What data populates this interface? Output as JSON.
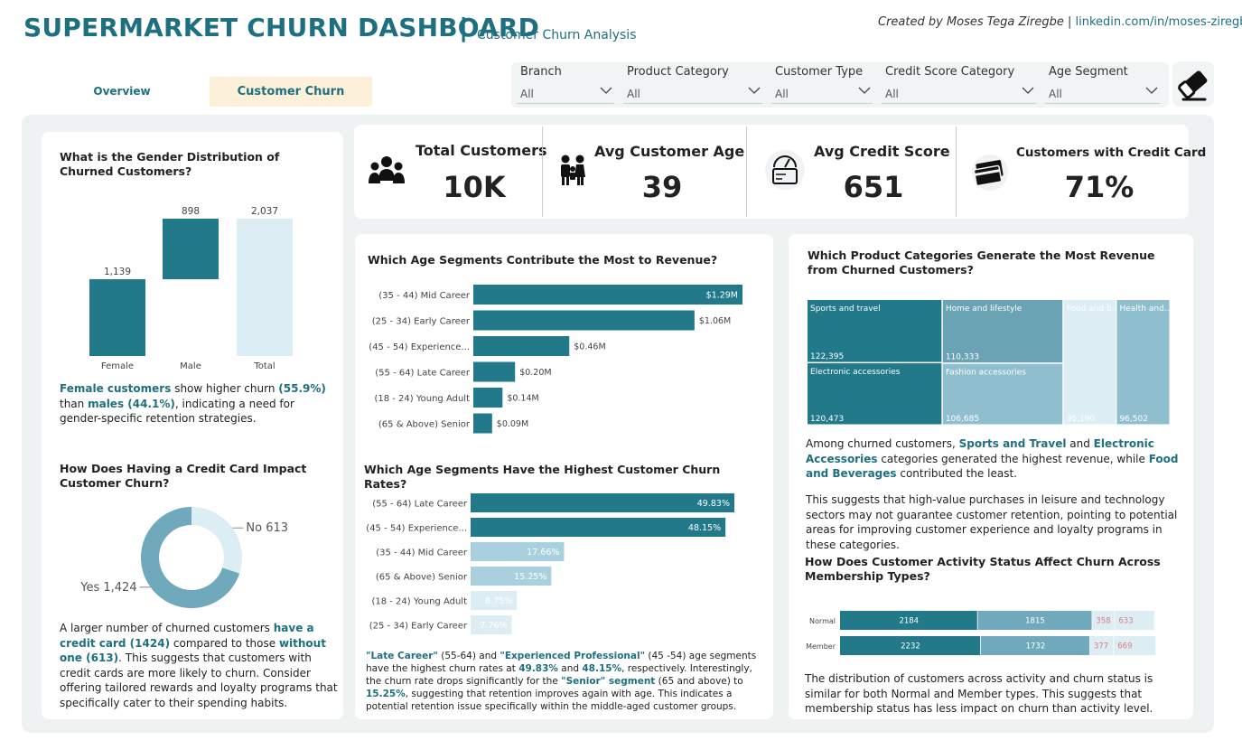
{
  "header": {
    "title": "SUPERMARKET CHURN DASHBOARD",
    "separator": "|",
    "subtitle": "Customer Churn Analysis",
    "credit_prefix": "Created by Moses Tega Ziregbe",
    "credit_sep": "|",
    "credit_link": "linkedin.com/in/moses-ziregbe"
  },
  "nav": {
    "overview": "Overview",
    "active": "Customer Churn Analysis"
  },
  "filters": [
    {
      "label": "Branch",
      "value": "All"
    },
    {
      "label": "Product Category",
      "value": "All"
    },
    {
      "label": "Customer Type",
      "value": "All"
    },
    {
      "label": "Credit Score Category",
      "value": "All"
    },
    {
      "label": "Age Segment",
      "value": "All"
    }
  ],
  "kpis": [
    {
      "label": "Total Customers",
      "value": "10K",
      "icon": "people-icon"
    },
    {
      "label": "Avg Customer Age",
      "value": "39",
      "icon": "family-icon"
    },
    {
      "label": "Avg Credit Score",
      "value": "651",
      "icon": "credit-gauge-icon"
    },
    {
      "label": "Customers with Credit Card",
      "value": "71%",
      "icon": "credit-card-icon"
    }
  ],
  "gender": {
    "question": "What is the Gender Distribution of Churned Customers?",
    "text_b1": "Female customers",
    "text_1": " show higher churn ",
    "text_b2": "(55.9%)",
    "text_2": " than ",
    "text_b3": "males (44.1%)",
    "text_3": ", indicating a need for gender-specific retention strategies."
  },
  "credit": {
    "question": "How Does Having a Credit Card Impact Customer Churn?",
    "text_1": "A larger number of churned customers ",
    "text_b1": "have a credit card (1424)",
    "text_2": " compared to those ",
    "text_b2": "without one (613)",
    "text_3": ". This suggests that customers with credit cards are more likely to churn. Consider offering tailored rewards and loyalty programs that specifically cater to their spending habits."
  },
  "revenue_age": {
    "question": "Which Age Segments Contribute the Most to Revenue?"
  },
  "churn_age": {
    "question": "Which Age Segments Have the Highest Customer Churn Rates?",
    "text_b1": "\"Late Career\"",
    "text_1": " (55-64) and ",
    "text_b2": "\"Experienced Professional\"",
    "text_2": " (45 -54) age segments have the highest churn rates at ",
    "text_b3": "49.83%",
    "text_3": " and ",
    "text_b4": "48.15%",
    "text_4": ", respectively. Interestingly, the churn rate drops significantly for the ",
    "text_b5": "\"Senior\" segment",
    "text_5": " (65 and above) to ",
    "text_b6": "15.25%",
    "text_6": ", suggesting that retention improves again with age. This indicates a potential retention issue specifically within the middle-aged customer groups."
  },
  "product": {
    "question": "Which Product Categories Generate the Most Revenue from Churned Customers?",
    "text_1": "Among churned customers, ",
    "text_b1": "Sports and Travel",
    "text_2": " and ",
    "text_b2": "Electronic Accessories",
    "text_3": " categories generated the highest revenue, while ",
    "text_b3": "Food and Beverages",
    "text_4": " contributed the least.",
    "text_5": "This suggests that high-value purchases in leisure and technology sectors may not guarantee customer retention, pointing to potential areas for improving customer experience and loyalty programs in these categories."
  },
  "activity": {
    "question": "How Does Customer Activity Status Affect Churn Across Membership Types?",
    "text": "The distribution of customers across activity and churn status is similar for both Normal and Member types. This suggests that membership status has less impact on churn than activity level."
  },
  "colors": {
    "teal": "#21798a",
    "mid": "#6fa9bb",
    "light": "#a9d0de",
    "pale": "#ddedf4",
    "red": "#e07b7b"
  },
  "chart_data": [
    {
      "id": "gender_waterfall",
      "type": "bar",
      "subtype": "waterfall",
      "categories": [
        "Female",
        "Male",
        "Total"
      ],
      "values": [
        1139,
        898,
        2037
      ],
      "labels": [
        "1,139",
        "898",
        "2,037"
      ],
      "ylim": [
        0,
        2037
      ]
    },
    {
      "id": "credit_donut",
      "type": "pie",
      "subtype": "donut",
      "labels": [
        "No",
        "Yes"
      ],
      "values": [
        613,
        1424
      ],
      "value_labels": [
        "613",
        "1,424"
      ]
    },
    {
      "id": "revenue_by_age",
      "type": "bar",
      "orientation": "horizontal",
      "categories": [
        "(35 - 44) Mid Career",
        "(25 - 34) Early Career",
        "(45 - 54) Experience...",
        "(55 - 64) Late Career",
        "(18 - 24) Young Adult",
        "(65 & Above) Senior"
      ],
      "values": [
        1.29,
        1.06,
        0.46,
        0.2,
        0.14,
        0.09
      ],
      "labels": [
        "$1.29M",
        "$1.06M",
        "$0.46M",
        "$0.20M",
        "$0.14M",
        "$0.09M"
      ]
    },
    {
      "id": "churn_rate_by_age",
      "type": "bar",
      "orientation": "horizontal",
      "categories": [
        "(55 - 64) Late Career",
        "(45 - 54) Experience...",
        "(35 - 44) Mid Career",
        "(65 & Above) Senior",
        "(18 - 24) Young Adult",
        "(25 - 34) Early Career"
      ],
      "values": [
        49.83,
        48.15,
        17.66,
        15.25,
        8.75,
        7.76
      ],
      "labels": [
        "49.83%",
        "48.15%",
        "17.66%",
        "15.25%",
        "8.75%",
        "7.76%"
      ]
    },
    {
      "id": "product_treemap",
      "type": "heatmap",
      "subtype": "treemap",
      "categories": [
        "Sports and travel",
        "Electronic accessories",
        "Home and lifestyle",
        "Fashion accessories",
        "Food and b...",
        "Health and..."
      ],
      "values": [
        122395,
        120473,
        110333,
        106685,
        95190,
        96502
      ],
      "labels": [
        "122,395",
        "120,473",
        "110,333",
        "106,685",
        "95,190",
        "96,502"
      ]
    },
    {
      "id": "activity_membership",
      "type": "bar",
      "orientation": "horizontal",
      "stacked": true,
      "categories": [
        "Normal",
        "Member"
      ],
      "series": [
        {
          "values": [
            2184,
            2232
          ]
        },
        {
          "values": [
            1815,
            1732
          ]
        },
        {
          "values": [
            358,
            377
          ]
        },
        {
          "values": [
            633,
            669
          ]
        }
      ]
    }
  ]
}
